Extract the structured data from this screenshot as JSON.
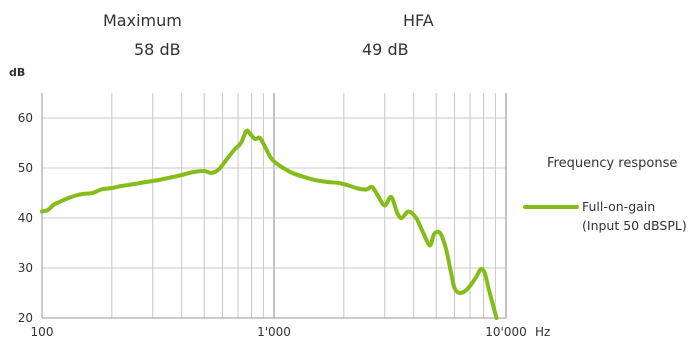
{
  "header": {
    "maximum_label": "Maximum",
    "maximum_value": "58 dB",
    "hfa_label": "HFA",
    "hfa_value": "49 dB"
  },
  "chart_data": {
    "type": "line",
    "ylabel": "dB",
    "xlabel": "Hz",
    "x_scale": "log",
    "xlim": [
      100,
      10000
    ],
    "ylim": [
      20,
      65
    ],
    "x_ticks": [
      100,
      1000,
      10000
    ],
    "x_tick_labels": [
      "100",
      "1'000",
      "10'000"
    ],
    "y_ticks": [
      20,
      30,
      40,
      50,
      60
    ],
    "grid": true,
    "legend": {
      "title": "Frequency response",
      "position": "right",
      "entries": [
        "Full-on-gain",
        "(Input 50 dBSPL)"
      ]
    },
    "series": [
      {
        "name": "Full-on-gain (Input 50 dBSPL)",
        "color": "#84bd1a",
        "points": [
          [
            100,
            41.3
          ],
          [
            106,
            41.6
          ],
          [
            112,
            42.6
          ],
          [
            120,
            43.3
          ],
          [
            130,
            44.0
          ],
          [
            140,
            44.5
          ],
          [
            150,
            44.8
          ],
          [
            165,
            45.0
          ],
          [
            180,
            45.7
          ],
          [
            200,
            46.0
          ],
          [
            220,
            46.4
          ],
          [
            250,
            46.8
          ],
          [
            280,
            47.2
          ],
          [
            310,
            47.5
          ],
          [
            350,
            48.0
          ],
          [
            400,
            48.6
          ],
          [
            450,
            49.2
          ],
          [
            500,
            49.4
          ],
          [
            540,
            49.0
          ],
          [
            580,
            49.8
          ],
          [
            620,
            51.5
          ],
          [
            670,
            53.5
          ],
          [
            720,
            55.0
          ],
          [
            760,
            57.4
          ],
          [
            790,
            56.8
          ],
          [
            830,
            55.8
          ],
          [
            870,
            56.0
          ],
          [
            920,
            54.0
          ],
          [
            970,
            52.0
          ],
          [
            1020,
            51.0
          ],
          [
            1080,
            50.2
          ],
          [
            1200,
            49.0
          ],
          [
            1350,
            48.2
          ],
          [
            1500,
            47.6
          ],
          [
            1700,
            47.2
          ],
          [
            1900,
            47.0
          ],
          [
            2100,
            46.5
          ],
          [
            2300,
            45.9
          ],
          [
            2500,
            45.7
          ],
          [
            2650,
            46.2
          ],
          [
            2800,
            44.5
          ],
          [
            3000,
            42.5
          ],
          [
            3200,
            44.2
          ],
          [
            3400,
            41.0
          ],
          [
            3550,
            40.0
          ],
          [
            3800,
            41.3
          ],
          [
            4100,
            40.0
          ],
          [
            4400,
            37.0
          ],
          [
            4700,
            34.5
          ],
          [
            4900,
            36.8
          ],
          [
            5200,
            37.0
          ],
          [
            5500,
            34.0
          ],
          [
            5800,
            29.0
          ],
          [
            6000,
            26.0
          ],
          [
            6300,
            25.0
          ],
          [
            6700,
            25.5
          ],
          [
            7100,
            26.8
          ],
          [
            7500,
            28.5
          ],
          [
            7800,
            29.8
          ],
          [
            8100,
            29.0
          ],
          [
            8400,
            26.0
          ],
          [
            8800,
            22.5
          ],
          [
            9100,
            20.0
          ]
        ]
      }
    ]
  }
}
